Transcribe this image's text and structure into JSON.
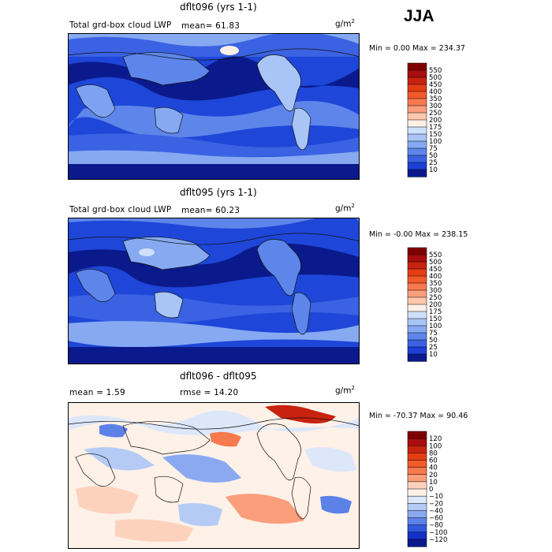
{
  "season": "JJA",
  "colors": {
    "ocean_dark": "#0a1a8c",
    "ocean_mid": "#1e46d8",
    "ocean_light": "#7ea2f2",
    "land_pale": "#c9dbf7",
    "coast": "#111111"
  },
  "icons": [
    "map-panel",
    "colorbar"
  ],
  "panels": [
    {
      "title": "dflt096 (yrs 1-1)",
      "left_label": "Total grd-box cloud LWP",
      "stat1": "mean=  61.83",
      "stat2": "",
      "units": "g/m",
      "units_sup": "2",
      "minmax": "Min =    0.00 Max = 234.37",
      "colorbar": {
        "labels": [
          "550",
          "500",
          "450",
          "400",
          "350",
          "300",
          "250",
          "200",
          "175",
          "150",
          "100",
          "75",
          "50",
          "25",
          "10"
        ],
        "colors": [
          "#7f0000",
          "#a80e0e",
          "#c8230f",
          "#e33d14",
          "#f25a2a",
          "#f77a4e",
          "#fa9e7c",
          "#fdc8ad",
          "#fdf0e6",
          "#cfe0fb",
          "#a9c4f7",
          "#86a9f2",
          "#5e85ea",
          "#3a62e2",
          "#1c3fd6",
          "#0a1a8c"
        ]
      },
      "chart_data": {
        "type": "heatmap",
        "title": "dflt096 (yrs 1-1)",
        "variable": "Total grd-box cloud LWP",
        "mean": 61.83,
        "min": 0.0,
        "max": 234.37,
        "units": "g/m2",
        "contour_levels": [
          10,
          25,
          50,
          75,
          100,
          150,
          175,
          200,
          250,
          300,
          350,
          400,
          450,
          500,
          550
        ]
      }
    },
    {
      "title": "dflt095 (yrs 1-1)",
      "left_label": "Total grd-box cloud LWP",
      "stat1": "mean=  60.23",
      "stat2": "",
      "units": "g/m",
      "units_sup": "2",
      "minmax": "Min =   -0.00 Max = 238.15",
      "colorbar": {
        "labels": [
          "550",
          "500",
          "450",
          "400",
          "350",
          "300",
          "250",
          "200",
          "175",
          "150",
          "100",
          "75",
          "50",
          "25",
          "10"
        ],
        "colors": [
          "#7f0000",
          "#a80e0e",
          "#c8230f",
          "#e33d14",
          "#f25a2a",
          "#f77a4e",
          "#fa9e7c",
          "#fdc8ad",
          "#fdf0e6",
          "#cfe0fb",
          "#a9c4f7",
          "#86a9f2",
          "#5e85ea",
          "#3a62e2",
          "#1c3fd6",
          "#0a1a8c"
        ]
      },
      "chart_data": {
        "type": "heatmap",
        "title": "dflt095 (yrs 1-1)",
        "variable": "Total grd-box cloud LWP",
        "mean": 60.23,
        "min": -0.0,
        "max": 238.15,
        "units": "g/m2",
        "contour_levels": [
          10,
          25,
          50,
          75,
          100,
          150,
          175,
          200,
          250,
          300,
          350,
          400,
          450,
          500,
          550
        ]
      }
    },
    {
      "title": "dflt096 - dflt095",
      "left_label": "",
      "stat1": "mean =     1.59",
      "stat2": "rmse =   14.20",
      "units": "g/m",
      "units_sup": "2",
      "minmax": "Min = -70.37  Max =   90.46",
      "colorbar": {
        "labels": [
          "120",
          "100",
          "80",
          "60",
          "40",
          "20",
          "10",
          "0",
          "−10",
          "−20",
          "−40",
          "−60",
          "−80",
          "−100",
          "−120"
        ],
        "colors": [
          "#7f0000",
          "#a80e0e",
          "#c8230f",
          "#e33d14",
          "#f25a2a",
          "#f77a4e",
          "#fa9e7c",
          "#fdd2bd",
          "#fdf1e8",
          "#dce7fa",
          "#b5cbf6",
          "#8aa9f0",
          "#5c82e8",
          "#3059de",
          "#1530c8",
          "#0a1a8c"
        ]
      },
      "chart_data": {
        "type": "heatmap",
        "title": "dflt096 - dflt095",
        "mean": 1.59,
        "rmse": 14.2,
        "min": -70.37,
        "max": 90.46,
        "units": "g/m2",
        "contour_levels": [
          -120,
          -100,
          -80,
          -60,
          -40,
          -20,
          -10,
          0,
          10,
          20,
          40,
          60,
          80,
          100,
          120
        ]
      }
    }
  ]
}
